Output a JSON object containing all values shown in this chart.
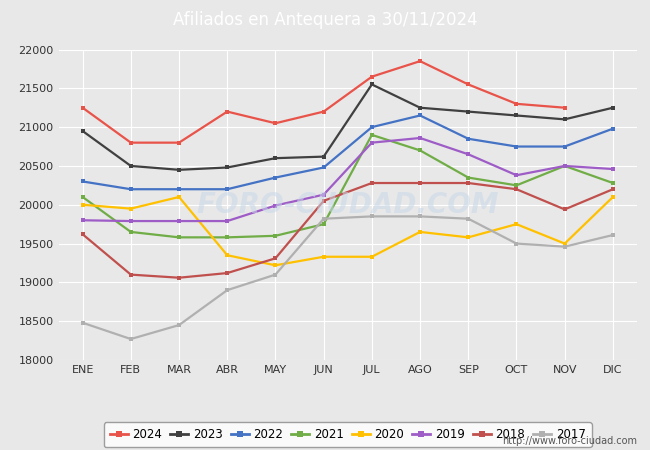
{
  "title": "Afiliados en Antequera a 30/11/2024",
  "title_bg_color": "#4472c4",
  "title_text_color": "white",
  "xlabel": "",
  "ylabel": "",
  "ylim": [
    18000,
    22000
  ],
  "yticks": [
    18000,
    18500,
    19000,
    19500,
    20000,
    20500,
    21000,
    21500,
    22000
  ],
  "months": [
    "ENE",
    "FEB",
    "MAR",
    "ABR",
    "MAY",
    "JUN",
    "JUL",
    "AGO",
    "SEP",
    "OCT",
    "NOV",
    "DIC"
  ],
  "watermark": "FORO-CIUDAD.COM",
  "source_text": "http://www.foro-ciudad.com",
  "series": {
    "2024": {
      "color": "#e8534a",
      "data": [
        21250,
        20800,
        20800,
        21200,
        21050,
        21200,
        21650,
        21850,
        21550,
        21300,
        21250,
        null
      ]
    },
    "2023": {
      "color": "#404040",
      "data": [
        20950,
        20500,
        20450,
        20480,
        20600,
        20620,
        21550,
        21250,
        21200,
        21150,
        21100,
        21250
      ]
    },
    "2022": {
      "color": "#4472c4",
      "data": [
        20300,
        20200,
        20200,
        20200,
        20350,
        20480,
        21000,
        21150,
        20850,
        20750,
        20750,
        20980
      ]
    },
    "2021": {
      "color": "#70ad47",
      "data": [
        20100,
        19650,
        19580,
        19580,
        19600,
        19750,
        20900,
        20700,
        20350,
        20250,
        20500,
        20280
      ]
    },
    "2020": {
      "color": "#ffc000",
      "data": [
        20000,
        19950,
        20100,
        19350,
        19220,
        19330,
        19330,
        19650,
        19580,
        19750,
        19500,
        20100
      ]
    },
    "2019": {
      "color": "#9e5cc7",
      "data": [
        19800,
        19790,
        19790,
        19790,
        19990,
        20130,
        20800,
        20860,
        20650,
        20380,
        20500,
        20460
      ]
    },
    "2018": {
      "color": "#c0504d",
      "data": [
        19620,
        19100,
        19060,
        19120,
        19310,
        20050,
        20280,
        20280,
        20280,
        20200,
        19940,
        20200
      ]
    },
    "2017": {
      "color": "#b0b0b0",
      "data": [
        18480,
        18270,
        18450,
        18900,
        19100,
        19820,
        19850,
        19850,
        19820,
        19500,
        19460,
        19610
      ]
    }
  },
  "legend_order": [
    "2024",
    "2023",
    "2022",
    "2021",
    "2020",
    "2019",
    "2018",
    "2017"
  ],
  "bg_color": "#e8e8e8",
  "plot_bg_color": "#e8e8e8",
  "grid_color": "white",
  "font_color": "#333333"
}
